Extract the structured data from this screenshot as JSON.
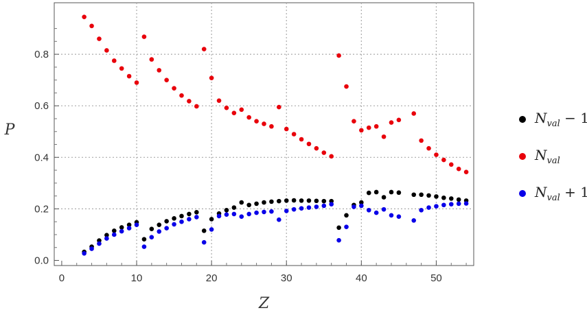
{
  "chart_data": {
    "type": "scatter",
    "xlabel": "Z",
    "ylabel": "P",
    "xlim": [
      -1,
      55
    ],
    "ylim": [
      -0.02,
      1.0
    ],
    "x_ticks": [
      0,
      10,
      20,
      30,
      40,
      50
    ],
    "y_ticks": [
      0.0,
      0.2,
      0.4,
      0.6,
      0.8
    ],
    "x_tick_labels": [
      "0",
      "10",
      "20",
      "30",
      "40",
      "50"
    ],
    "y_tick_labels": [
      "0.0",
      "0.2",
      "0.4",
      "0.6",
      "0.8"
    ],
    "grid": true,
    "legend_position": "right",
    "series": [
      {
        "name": "N_val − 1",
        "legend": {
          "base": "N",
          "sub": "val",
          "suffix": " − 1"
        },
        "color": "#000000",
        "x": [
          3,
          4,
          5,
          6,
          7,
          8,
          9,
          10,
          11,
          12,
          13,
          14,
          15,
          16,
          17,
          18,
          19,
          20,
          21,
          22,
          23,
          24,
          25,
          26,
          27,
          28,
          29,
          30,
          31,
          32,
          33,
          34,
          35,
          36,
          37,
          38,
          39,
          40,
          41,
          42,
          43,
          44,
          45,
          47,
          48,
          49,
          50,
          51,
          52,
          53,
          54
        ],
        "y": [
          0.033,
          0.053,
          0.077,
          0.098,
          0.115,
          0.128,
          0.138,
          0.148,
          0.082,
          0.122,
          0.138,
          0.152,
          0.163,
          0.172,
          0.18,
          0.187,
          0.115,
          0.16,
          0.182,
          0.195,
          0.205,
          0.225,
          0.215,
          0.22,
          0.225,
          0.228,
          0.23,
          0.232,
          0.233,
          0.232,
          0.232,
          0.231,
          0.23,
          0.23,
          0.127,
          0.175,
          0.215,
          0.225,
          0.262,
          0.265,
          0.245,
          0.265,
          0.263,
          0.255,
          0.255,
          0.252,
          0.248,
          0.243,
          0.24,
          0.236,
          0.232
        ]
      },
      {
        "name": "N_val",
        "legend": {
          "base": "N",
          "sub": "val",
          "suffix": ""
        },
        "color": "#e8000b",
        "x": [
          3,
          4,
          5,
          6,
          7,
          8,
          9,
          10,
          11,
          12,
          13,
          14,
          15,
          16,
          17,
          18,
          19,
          20,
          21,
          22,
          23,
          24,
          25,
          26,
          27,
          28,
          29,
          30,
          31,
          32,
          33,
          34,
          35,
          36,
          37,
          38,
          39,
          40,
          41,
          42,
          43,
          44,
          45,
          47,
          48,
          49,
          50,
          51,
          52,
          53,
          54
        ],
        "y": [
          0.945,
          0.91,
          0.86,
          0.815,
          0.775,
          0.745,
          0.715,
          0.69,
          0.868,
          0.78,
          0.738,
          0.7,
          0.668,
          0.64,
          0.618,
          0.598,
          0.82,
          0.708,
          0.62,
          0.592,
          0.572,
          0.585,
          0.555,
          0.54,
          0.53,
          0.52,
          0.595,
          0.51,
          0.49,
          0.47,
          0.452,
          0.435,
          0.418,
          0.404,
          0.795,
          0.675,
          0.54,
          0.505,
          0.515,
          0.52,
          0.48,
          0.535,
          0.545,
          0.57,
          0.465,
          0.435,
          0.41,
          0.39,
          0.372,
          0.355,
          0.343
        ]
      },
      {
        "name": "N_val + 1",
        "legend": {
          "base": "N",
          "sub": "val",
          "suffix": " + 1"
        },
        "color": "#0a00e8",
        "x": [
          3,
          4,
          5,
          6,
          7,
          8,
          9,
          10,
          11,
          12,
          13,
          14,
          15,
          16,
          17,
          18,
          19,
          20,
          21,
          22,
          23,
          24,
          25,
          26,
          27,
          28,
          29,
          30,
          31,
          32,
          33,
          34,
          35,
          36,
          37,
          38,
          39,
          40,
          41,
          42,
          43,
          44,
          45,
          47,
          48,
          49,
          50,
          51,
          52,
          53,
          54
        ],
        "y": [
          0.027,
          0.045,
          0.065,
          0.085,
          0.1,
          0.113,
          0.125,
          0.138,
          0.053,
          0.09,
          0.112,
          0.125,
          0.14,
          0.15,
          0.16,
          0.168,
          0.07,
          0.12,
          0.172,
          0.178,
          0.18,
          0.17,
          0.18,
          0.185,
          0.188,
          0.19,
          0.158,
          0.192,
          0.198,
          0.202,
          0.205,
          0.208,
          0.212,
          0.218,
          0.078,
          0.13,
          0.208,
          0.212,
          0.195,
          0.185,
          0.198,
          0.175,
          0.17,
          0.155,
          0.195,
          0.205,
          0.21,
          0.215,
          0.218,
          0.22,
          0.221
        ]
      }
    ]
  }
}
